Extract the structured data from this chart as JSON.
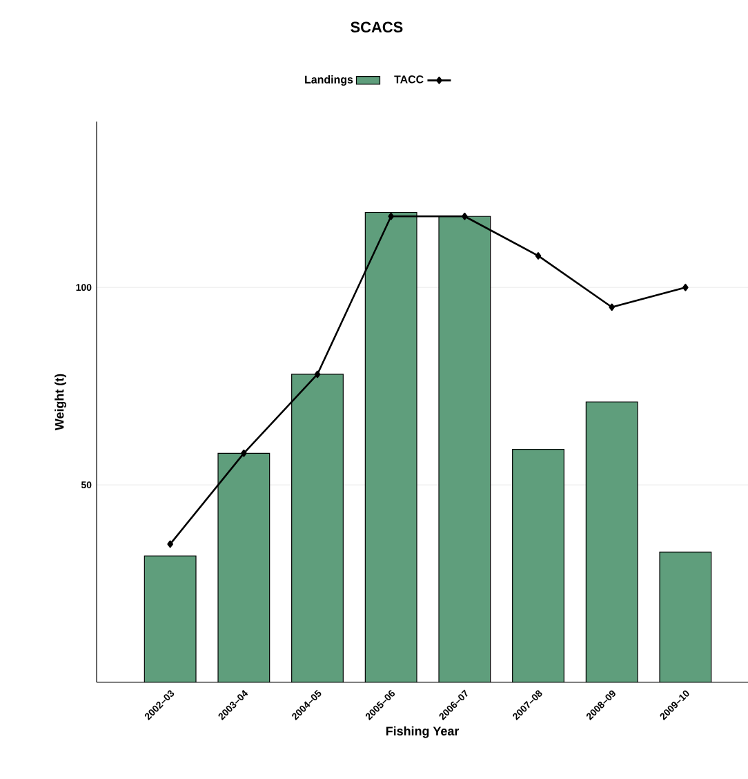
{
  "chart_data": {
    "type": "bar",
    "title": "SCACS",
    "xlabel": "Fishing Year",
    "ylabel": "Weight (t)",
    "categories": [
      "2002–03",
      "2003–04",
      "2004–05",
      "2005–06",
      "2006–07",
      "2007–08",
      "2008–09",
      "2009–10"
    ],
    "series": [
      {
        "name": "Landings",
        "color": "#5f9e7c",
        "values": [
          32,
          58,
          78,
          119,
          118,
          59,
          71,
          33
        ]
      },
      {
        "name": "TACC",
        "type": "line",
        "color": "#000000",
        "marker": "diamond",
        "line_style": "solid",
        "values": [
          35,
          58,
          78,
          118,
          118,
          108,
          95,
          100
        ]
      }
    ],
    "ylim": [
      0,
      142
    ],
    "yticks": [
      50,
      100
    ],
    "grid": "y",
    "legend": "top"
  }
}
